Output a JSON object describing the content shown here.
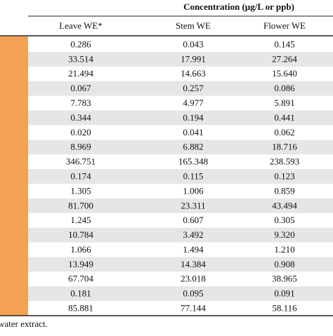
{
  "table": {
    "group_header": "Concentration (µg/L or ppb)",
    "columns": [
      "Leave WE*",
      "Stem WE",
      "Flower WE"
    ],
    "rows": [
      [
        "0.286",
        "0.043",
        "0.145"
      ],
      [
        "33.514",
        "17.991",
        "27.264"
      ],
      [
        "21.494",
        "14.663",
        "15.640"
      ],
      [
        "0.067",
        "0.257",
        "0.086"
      ],
      [
        "7.783",
        "4.977",
        "5.891"
      ],
      [
        "0.344",
        "0.194",
        "0.441"
      ],
      [
        "0.020",
        "0.041",
        "0.062"
      ],
      [
        "8.969",
        "6.882",
        "18.716"
      ],
      [
        "346.751",
        "165.348",
        "238.593"
      ],
      [
        "0.174",
        "0.115",
        "0.123"
      ],
      [
        "1.305",
        "1.006",
        "0.859"
      ],
      [
        "81.700",
        "23.311",
        "43.494"
      ],
      [
        "1.245",
        "0.607",
        "0.305"
      ],
      [
        "10.784",
        "3.492",
        "9.320"
      ],
      [
        "1.066",
        "1.494",
        "1.210"
      ],
      [
        "13.949",
        "14.384",
        "0.908"
      ],
      [
        "67.704",
        "23.018",
        "38.965"
      ],
      [
        "0.181",
        "0.095",
        "0.091"
      ],
      [
        "85.881",
        "77.144",
        "58.116"
      ]
    ],
    "footnote": "water extract."
  }
}
